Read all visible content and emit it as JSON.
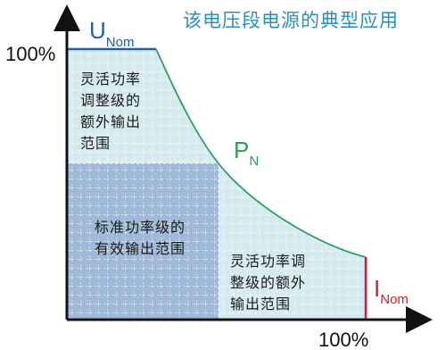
{
  "title": "该电压段电源的典型应用",
  "axes": {
    "y_max_label": "100%",
    "x_max_label": "100%"
  },
  "labels": {
    "voltage": {
      "main": "U",
      "sub": "Nom"
    },
    "power": {
      "main": "P",
      "sub": "N"
    },
    "current": {
      "main": "I",
      "sub": "Nom"
    }
  },
  "regions": {
    "top_left": [
      "灵活功率",
      "调整级的",
      "额外输出",
      "范围"
    ],
    "center": [
      "标准功率级的",
      "有效输出范围"
    ],
    "bottom_right": [
      "灵活功率调",
      "整级的额外",
      "输出范围"
    ]
  },
  "colors": {
    "title": "#2a8fbe",
    "voltage_line": "#1f5fa8",
    "power_curve": "#2aa05a",
    "current_line": "#d0202a",
    "standard_region_fill": "#9db9dc",
    "flexible_region_fill": "#d4ecf1",
    "grid_dash": "#ffffff"
  }
}
